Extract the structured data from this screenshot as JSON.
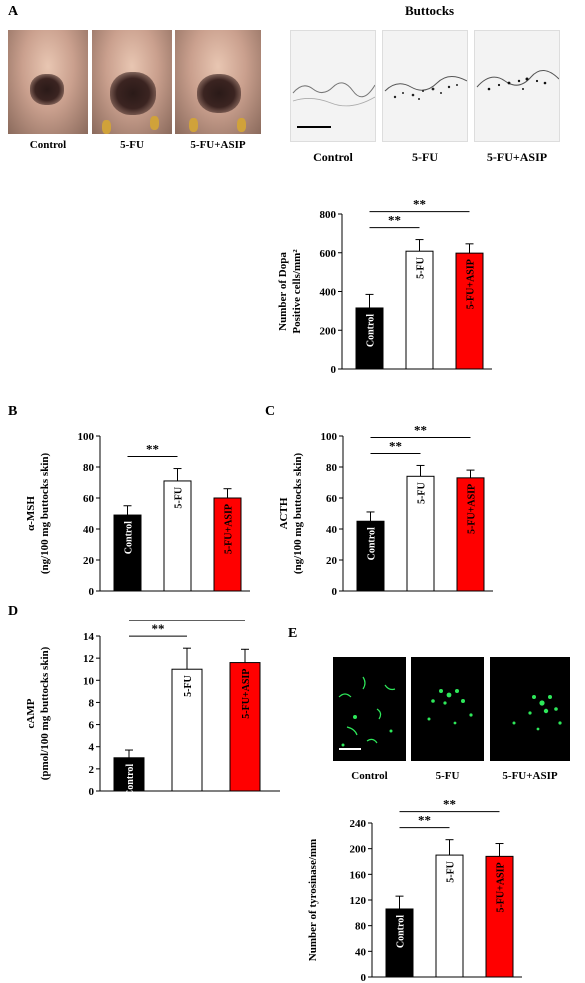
{
  "panels": {
    "A": "A",
    "B": "B",
    "C": "C",
    "D": "D",
    "E": "E"
  },
  "panel_a": {
    "mouse_captions": [
      "Control",
      "5-FU",
      "5-FU+ASIP"
    ],
    "histology_heading": "Buttocks",
    "histology_captions": [
      "Control",
      "5-FU",
      "5-FU+ASIP"
    ]
  },
  "panel_e": {
    "captions": [
      "Control",
      "5-FU",
      "5-FU+ASIP"
    ]
  },
  "colors": {
    "control": "#000000",
    "fu": "#ffffff",
    "asip": "#ff0000",
    "fluorescence": "#2ee85a"
  },
  "chart_data": [
    {
      "id": "A-dopa",
      "type": "bar",
      "categories": [
        "Control",
        "5-FU",
        "5-FU+ASIP"
      ],
      "values": [
        315,
        608,
        598
      ],
      "errors": [
        70,
        60,
        48
      ],
      "ylabel": [
        "Number of Dopa",
        "Positive cells/mm²"
      ],
      "ylim": [
        0,
        800
      ],
      "yticks": [
        0,
        200,
        400,
        600,
        800
      ],
      "significance": [
        {
          "from": 0,
          "to": 1,
          "label": "**"
        },
        {
          "from": 0,
          "to": 2,
          "label": "**"
        }
      ]
    },
    {
      "id": "B-msh",
      "type": "bar",
      "categories": [
        "Control",
        "5-FU",
        "5-FU+ASIP"
      ],
      "values": [
        49,
        71,
        60
      ],
      "errors": [
        6,
        8,
        6
      ],
      "ylabel": [
        "α-MSH",
        "(ng/100 mg buttocks skin)"
      ],
      "ylim": [
        0,
        100
      ],
      "yticks": [
        0,
        20,
        40,
        60,
        80,
        100
      ],
      "significance": [
        {
          "from": 0,
          "to": 1,
          "label": "**"
        }
      ]
    },
    {
      "id": "C-acth",
      "type": "bar",
      "categories": [
        "Control",
        "5-FU",
        "5-FU+ASIP"
      ],
      "values": [
        45,
        74,
        73
      ],
      "errors": [
        6,
        7,
        5
      ],
      "ylabel": [
        "ACTH",
        "(ng/100 mg buttocks skin)"
      ],
      "ylim": [
        0,
        100
      ],
      "yticks": [
        0,
        20,
        40,
        60,
        80,
        100
      ],
      "significance": [
        {
          "from": 0,
          "to": 1,
          "label": "**"
        },
        {
          "from": 0,
          "to": 2,
          "label": "**"
        }
      ]
    },
    {
      "id": "D-camp",
      "type": "bar",
      "categories": [
        "Control",
        "5-FU",
        "5-FU+ASIP"
      ],
      "values": [
        3.0,
        11.0,
        11.6
      ],
      "errors": [
        0.7,
        1.9,
        1.2
      ],
      "ylabel": [
        "cAMP",
        "(pmol/100 mg buttocks skin)"
      ],
      "ylim": [
        0,
        14
      ],
      "yticks": [
        0,
        2,
        4,
        6,
        8,
        10,
        12,
        14
      ],
      "significance": [
        {
          "from": 0,
          "to": 1,
          "label": "**"
        },
        {
          "from": 0,
          "to": 2,
          "label": "**"
        }
      ]
    },
    {
      "id": "E-tyr",
      "type": "bar",
      "categories": [
        "Control",
        "5-FU",
        "5-FU+ASIP"
      ],
      "values": [
        106,
        190,
        188
      ],
      "errors": [
        20,
        24,
        20
      ],
      "ylabel": [
        "Number of tyrosinase/mm"
      ],
      "ylim": [
        0,
        240
      ],
      "yticks": [
        0,
        40,
        80,
        120,
        160,
        200,
        240
      ],
      "significance": [
        {
          "from": 0,
          "to": 1,
          "label": "**"
        },
        {
          "from": 0,
          "to": 2,
          "label": "**"
        }
      ]
    }
  ]
}
